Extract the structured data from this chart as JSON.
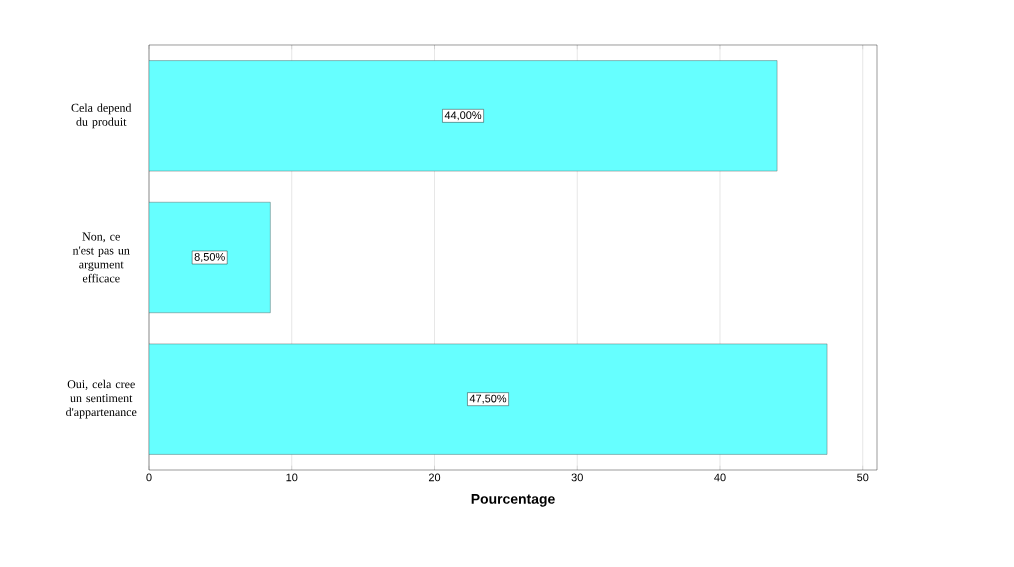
{
  "chart_data": {
    "type": "bar",
    "orientation": "horizontal",
    "categories": [
      "Cela depend du produit",
      "Non, ce n'est pas un argument efficace",
      "Oui, cela cree un sentiment d'appartenance"
    ],
    "values": [
      44,
      8.5,
      47.5
    ],
    "value_labels": [
      "44,00%",
      "8,50%",
      "47,50%"
    ],
    "color": "#66ffff",
    "xlabel": "Pourcentage",
    "xlim": [
      0,
      51
    ],
    "xticks": [
      0,
      10,
      20,
      30,
      40,
      50
    ],
    "grid": "x"
  }
}
